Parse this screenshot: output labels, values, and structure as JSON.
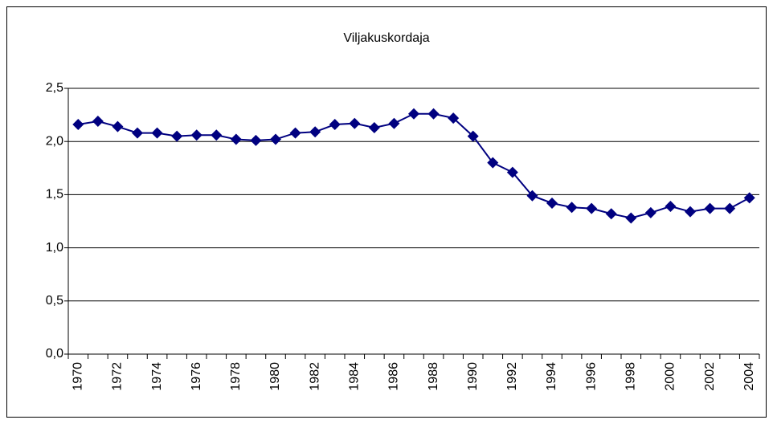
{
  "chart_data": {
    "type": "line",
    "title": "Viljakuskordaja",
    "categories": [
      "1970",
      null,
      "1972",
      null,
      "1974",
      null,
      "1976",
      null,
      "1978",
      null,
      "1980",
      null,
      "1982",
      null,
      "1984",
      null,
      "1986",
      null,
      "1988",
      null,
      "1990",
      null,
      "1992",
      null,
      "1994",
      null,
      "1996",
      null,
      "1998",
      null,
      "2000",
      null,
      "2002",
      null,
      "2004"
    ],
    "series": [
      {
        "color": "#000080",
        "values": [
          2.16,
          2.19,
          2.14,
          2.08,
          2.08,
          2.05,
          2.06,
          2.06,
          2.02,
          2.01,
          2.02,
          2.08,
          2.09,
          2.16,
          2.17,
          2.13,
          2.17,
          2.26,
          2.26,
          2.22,
          2.05,
          1.8,
          1.71,
          1.49,
          1.42,
          1.38,
          1.37,
          1.32,
          1.28,
          1.33,
          1.39,
          1.34,
          1.37,
          1.37,
          1.47
        ]
      }
    ],
    "ylim": [
      0,
      2.5
    ],
    "yticks": [
      {
        "value": 0,
        "label": "0,0"
      },
      {
        "value": 0.5,
        "label": "0,5"
      },
      {
        "value": 1,
        "label": "1,0"
      },
      {
        "value": 1.5,
        "label": "1,5"
      },
      {
        "value": 2,
        "label": "2,0"
      },
      {
        "value": 2.5,
        "label": "2,5"
      }
    ],
    "grid": true
  }
}
